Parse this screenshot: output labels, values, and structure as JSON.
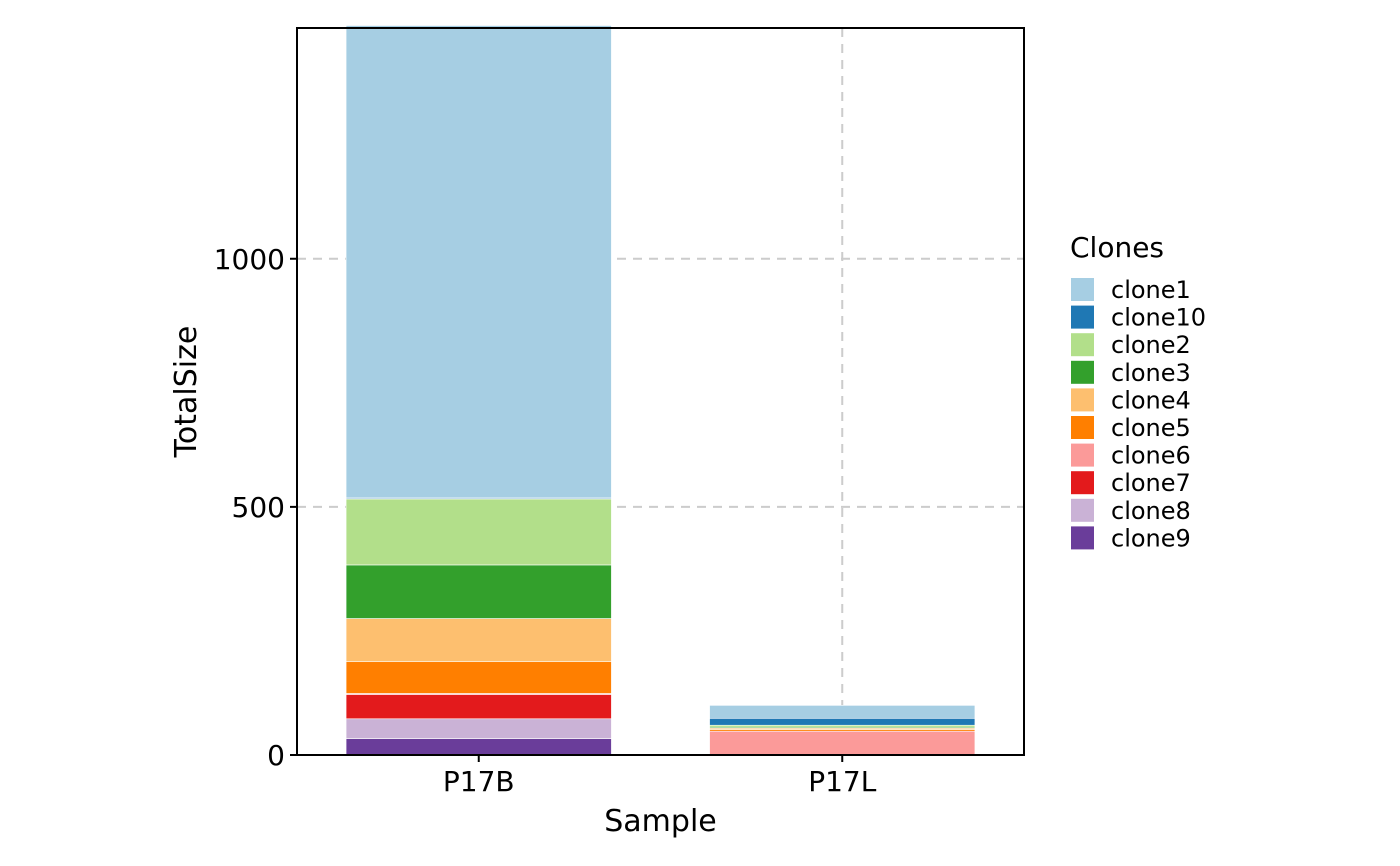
{
  "chart_data": {
    "type": "bar",
    "stacked": true,
    "xlabel": "Sample",
    "ylabel": "TotalSize",
    "categories": [
      "P17B",
      "P17L"
    ],
    "ylim": [
      0,
      1465
    ],
    "yticks": [
      0,
      500,
      1000
    ],
    "grid": true,
    "legend_title": "Clones",
    "legend_position": "right",
    "series": [
      {
        "name": "clone9",
        "color": "#6A3D9A",
        "values": [
          33,
          0
        ]
      },
      {
        "name": "clone8",
        "color": "#CAB2D6",
        "values": [
          40,
          0
        ]
      },
      {
        "name": "clone7",
        "color": "#E31A1C",
        "values": [
          49,
          0
        ]
      },
      {
        "name": "clone6",
        "color": "#FB9A99",
        "values": [
          2,
          48
        ]
      },
      {
        "name": "clone5",
        "color": "#FF7F00",
        "values": [
          64,
          3
        ]
      },
      {
        "name": "clone4",
        "color": "#FDBF6F",
        "values": [
          87,
          3
        ]
      },
      {
        "name": "clone3",
        "color": "#33A02C",
        "values": [
          108,
          2
        ]
      },
      {
        "name": "clone2",
        "color": "#B2DF8A",
        "values": [
          133,
          4
        ]
      },
      {
        "name": "clone10",
        "color": "#1F78B4",
        "values": [
          2,
          14
        ]
      },
      {
        "name": "clone1",
        "color": "#A6CEE3",
        "values": [
          952,
          26
        ]
      }
    ],
    "legend_order": [
      "clone1",
      "clone10",
      "clone2",
      "clone3",
      "clone4",
      "clone5",
      "clone6",
      "clone7",
      "clone8",
      "clone9"
    ]
  }
}
